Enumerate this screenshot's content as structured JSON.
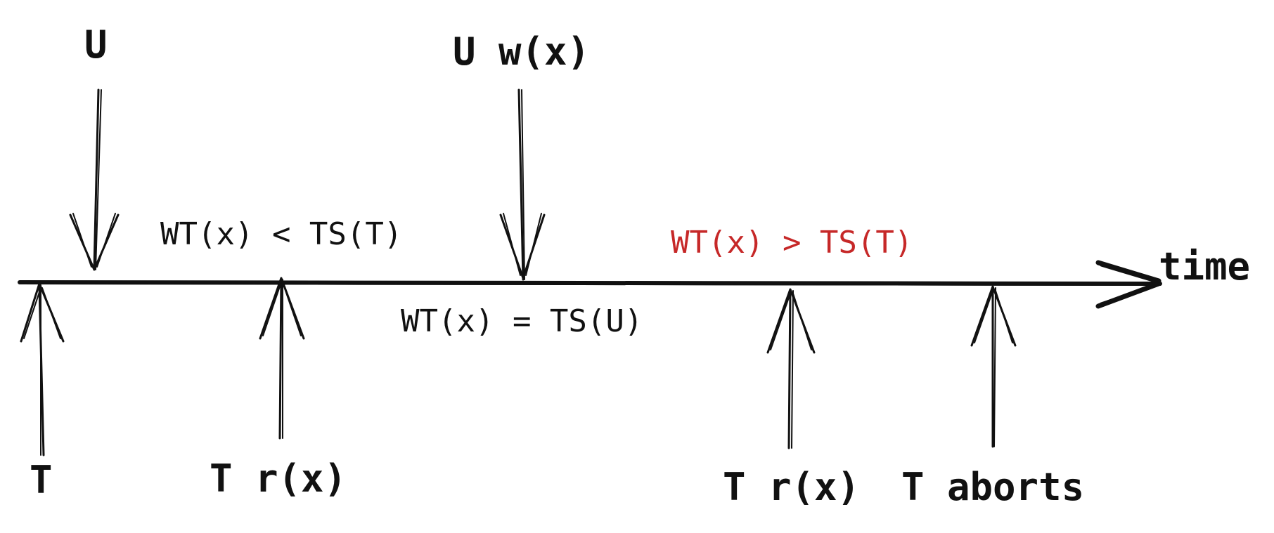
{
  "diagram": {
    "axis_label": "time",
    "events_above": {
      "u_start": "U",
      "u_write": "U w(x)"
    },
    "events_below": {
      "t_start": "T",
      "t_read_1": "T r(x)",
      "t_read_2": "T r(x)",
      "t_aborts": "T aborts"
    },
    "conditions": {
      "before_write": "WT(x) < TS(T)",
      "at_write": "WT(x) = TS(U)",
      "after_write": "WT(x) > TS(T)"
    },
    "colors": {
      "ink": "#111111",
      "violation": "#c62828"
    }
  }
}
